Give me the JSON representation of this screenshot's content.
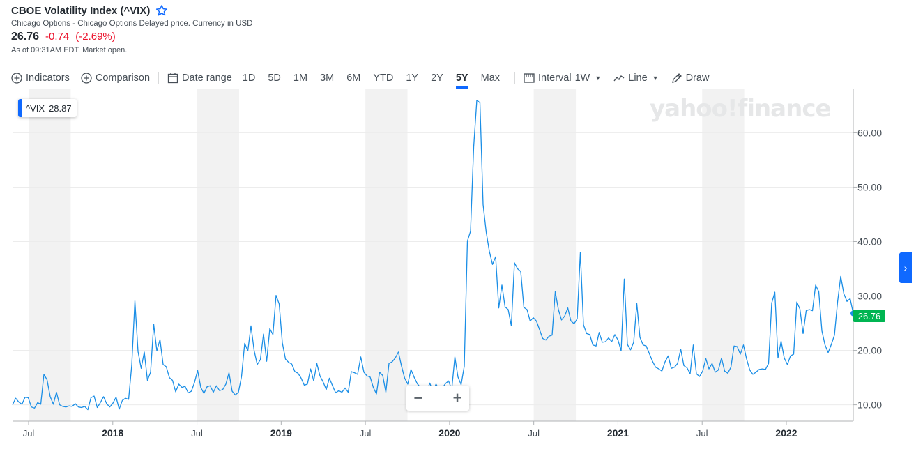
{
  "header": {
    "title": "CBOE Volatility Index (^VIX)",
    "subtitle": "Chicago Options - Chicago Options Delayed price. Currency in USD",
    "price": "26.76",
    "change": "-0.74",
    "change_pct": "(-2.69%)",
    "as_of": "As of 09:31AM EDT. Market open."
  },
  "toolbar": {
    "indicators": "Indicators",
    "comparison": "Comparison",
    "date_range": "Date range",
    "ranges": [
      "1D",
      "5D",
      "1M",
      "3M",
      "6M",
      "YTD",
      "1Y",
      "2Y",
      "5Y",
      "Max"
    ],
    "active_range": "5Y",
    "interval_label": "Interval",
    "interval_value": "1W",
    "line_label": "Line",
    "draw_label": "Draw"
  },
  "legend": {
    "symbol": "^VIX",
    "value": "28.87"
  },
  "watermark": "yahoo!finance",
  "zoom": {
    "minus": "−",
    "plus": "+"
  },
  "side_tab": "›",
  "colors": {
    "line": "#1a8ee6",
    "accent": "#0f69ff",
    "down": "#eb0f29",
    "up_tag": "#00b552"
  },
  "chart_data": {
    "type": "line",
    "x_tick_labels": [
      "Jul",
      "2018",
      "Jul",
      "2019",
      "Jul",
      "2020",
      "Jul",
      "2021",
      "Jul",
      "2022"
    ],
    "y_tick_labels": [
      "10.00",
      "20.00",
      "30.00",
      "40.00",
      "50.00",
      "60.00"
    ],
    "ylim": [
      7,
      68
    ],
    "last_value_label": "26.76",
    "shaded_bands": [
      [
        0.5,
        1.0
      ],
      [
        2.5,
        3.0
      ],
      [
        4.5,
        5.0
      ],
      [
        6.5,
        7.0
      ],
      [
        8.5,
        9.0
      ]
    ],
    "series": [
      {
        "x_start": 0.0,
        "x_end": 10.0,
        "values": [
          10.0,
          11.2,
          10.5,
          10.1,
          11.4,
          11.3,
          9.6,
          9.4,
          10.4,
          10.1,
          15.6,
          14.6,
          11.5,
          10.1,
          12.3,
          10.0,
          9.7,
          9.6,
          9.8,
          9.7,
          10.2,
          9.6,
          9.5,
          9.7,
          9.1,
          11.3,
          11.6,
          9.5,
          10.4,
          11.5,
          10.2,
          9.6,
          10.3,
          11.4,
          9.2,
          10.8,
          11.2,
          11.0,
          17.3,
          29.1,
          19.8,
          16.7,
          19.7,
          14.5,
          16.0,
          24.8,
          19.9,
          22.0,
          17.4,
          17.0,
          15.0,
          14.5,
          12.4,
          13.8,
          13.2,
          13.4,
          12.2,
          12.5,
          14.1,
          16.3,
          13.2,
          12.1,
          13.3,
          13.5,
          12.3,
          13.5,
          12.6,
          12.8,
          13.8,
          15.9,
          12.5,
          11.8,
          12.3,
          15.2,
          21.3,
          19.9,
          24.5,
          20.0,
          17.4,
          18.3,
          23.0,
          18.0,
          24.0,
          22.9,
          30.1,
          28.5,
          21.4,
          18.4,
          17.8,
          17.5,
          16.1,
          15.8,
          14.9,
          13.6,
          13.8,
          16.6,
          14.4,
          17.6,
          15.3,
          14.2,
          12.8,
          14.9,
          13.5,
          12.2,
          12.6,
          12.3,
          13.1,
          12.3,
          16.1,
          15.9,
          15.6,
          18.8,
          16.0,
          15.3,
          15.1,
          13.2,
          12.0,
          16.0,
          15.4,
          12.3,
          17.6,
          17.9,
          18.6,
          19.7,
          17.1,
          14.9,
          13.8,
          16.5,
          15.1,
          13.9,
          13.2,
          12.6,
          12.3,
          14.0,
          12.5,
          13.8,
          12.8,
          13.1,
          13.9,
          14.4,
          12.8,
          18.8,
          15.1,
          13.7,
          17.1,
          40.1,
          41.9,
          57.4,
          66.0,
          65.5,
          46.8,
          41.7,
          38.2,
          35.8,
          37.2,
          27.8,
          32.0,
          28.0,
          27.5,
          24.5,
          36.1,
          35.0,
          34.5,
          27.9,
          27.5,
          25.4,
          26.0,
          25.4,
          23.8,
          22.2,
          21.9,
          22.6,
          22.8,
          30.8,
          27.5,
          25.6,
          26.3,
          27.8,
          25.4,
          24.9,
          25.8,
          38.0,
          24.7,
          23.1,
          22.9,
          21.0,
          20.8,
          23.3,
          21.5,
          21.6,
          22.3,
          21.6,
          22.9,
          21.9,
          19.9,
          33.1,
          21.1,
          20.1,
          21.5,
          28.6,
          22.4,
          21.0,
          20.8,
          19.4,
          18.0,
          16.9,
          16.6,
          16.2,
          17.9,
          19.0,
          16.7,
          16.9,
          17.6,
          20.2,
          17.2,
          16.8,
          15.7,
          21.0,
          15.7,
          15.2,
          16.2,
          18.5,
          16.6,
          17.6,
          16.0,
          16.4,
          18.6,
          16.2,
          15.8,
          16.9,
          20.8,
          20.7,
          19.3,
          21.0,
          18.4,
          16.4,
          15.6,
          16.0,
          16.5,
          16.6,
          16.5,
          17.6,
          28.7,
          30.7,
          18.6,
          21.7,
          18.6,
          17.4,
          19.0,
          19.3,
          28.9,
          27.6,
          23.1,
          27.3,
          27.5,
          27.3,
          32.0,
          30.8,
          23.6,
          21.0,
          19.6,
          21.1,
          22.8,
          28.9,
          33.6,
          30.4,
          29.0,
          29.5,
          26.8
        ]
      }
    ]
  }
}
